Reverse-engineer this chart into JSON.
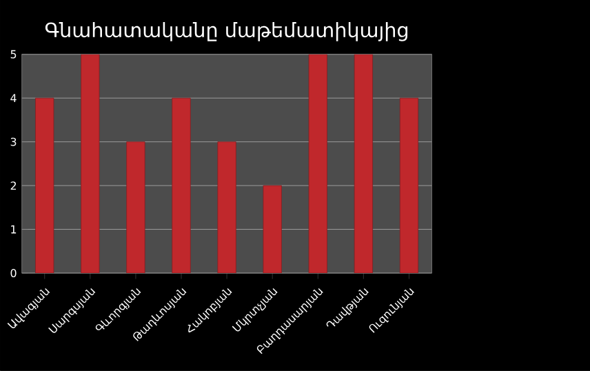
{
  "chart_data": {
    "type": "bar",
    "title": "Գնահատականը մաթեմատիկայից",
    "categories": [
      "Ավագյան",
      "Սարգսյան",
      "Գևորգյան",
      "Թադևոսյան",
      "Հակոբյան",
      "Մկրտչյան",
      "Բաղդասարյան",
      "Դավթյան",
      "Ուզունյան"
    ],
    "values": [
      4,
      5,
      3,
      4,
      3,
      2,
      5,
      5,
      4
    ],
    "color": "#c0282c",
    "ylim": [
      0,
      5
    ],
    "yticks": [
      0,
      1,
      2,
      3,
      4,
      5
    ],
    "grid": "y"
  }
}
